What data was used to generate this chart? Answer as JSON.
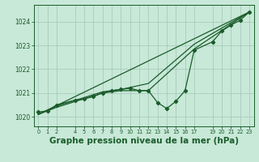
{
  "background_color": "#c8e8d8",
  "grid_color": "#a8ccbc",
  "line_color": "#1a5c2a",
  "xlabel": "Graphe pression niveau de la mer (hPa)",
  "xlabel_fontsize": 7.5,
  "ylim": [
    1019.6,
    1024.7
  ],
  "xlim": [
    -0.5,
    23.5
  ],
  "yticks": [
    1020,
    1021,
    1022,
    1023,
    1024
  ],
  "xticks": [
    0,
    1,
    2,
    4,
    5,
    6,
    7,
    8,
    9,
    10,
    11,
    12,
    13,
    14,
    15,
    16,
    17,
    19,
    20,
    21,
    22,
    23
  ],
  "series_main": {
    "x": [
      0,
      1,
      2,
      4,
      5,
      6,
      7,
      8,
      9,
      10,
      11,
      12,
      13,
      14,
      15,
      16,
      17,
      19,
      20,
      21,
      22,
      23
    ],
    "y": [
      1020.2,
      1020.25,
      1020.5,
      1020.7,
      1020.75,
      1020.85,
      1021.0,
      1021.1,
      1021.15,
      1021.2,
      1021.1,
      1021.1,
      1020.6,
      1020.35,
      1020.65,
      1021.1,
      1022.8,
      1023.15,
      1023.6,
      1023.85,
      1024.05,
      1024.4
    ]
  },
  "series_smooth1": {
    "x": [
      0,
      2,
      7,
      9,
      12,
      17,
      23
    ],
    "y": [
      1020.1,
      1020.45,
      1021.05,
      1021.15,
      1021.4,
      1023.05,
      1024.4
    ]
  },
  "series_smooth2": {
    "x": [
      0,
      2,
      7,
      9,
      12,
      17,
      23
    ],
    "y": [
      1020.1,
      1020.4,
      1021.0,
      1021.1,
      1021.1,
      1022.85,
      1024.4
    ]
  },
  "series_line": {
    "x": [
      0,
      23
    ],
    "y": [
      1020.1,
      1024.4
    ]
  }
}
